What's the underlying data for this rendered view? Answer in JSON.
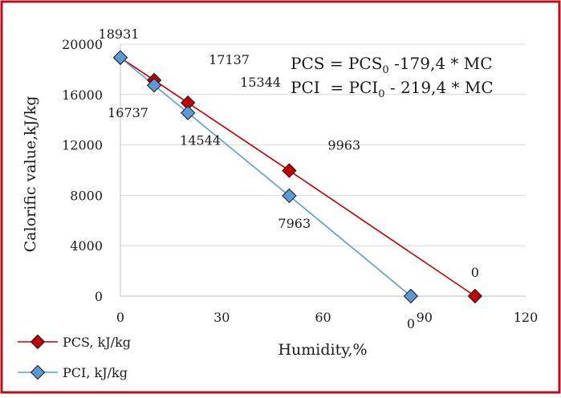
{
  "chart_data": {
    "type": "scatter",
    "xlabel": "Humidity,%",
    "ylabel": "Calorific value,kJ/kg",
    "xlim": [
      0,
      120
    ],
    "ylim": [
      0,
      20000
    ],
    "xticks": [
      "0",
      "30",
      "60",
      "90",
      "120"
    ],
    "yticks": [
      "0",
      "4000",
      "8000",
      "12000",
      "16000",
      "20000"
    ],
    "grid": true,
    "legend": "bottom-left",
    "series": [
      {
        "name": "PCS, kJ/kg",
        "color": "#c00000",
        "marker_color": "#c00000",
        "x": [
          0,
          10,
          20,
          50,
          105
        ],
        "y": [
          18931,
          17137,
          15344,
          9963,
          0
        ],
        "labels": [
          "18931",
          "17137",
          "15344",
          "9963",
          "0"
        ]
      },
      {
        "name": "PCI, kJ/kg",
        "color": "#5b9bd5",
        "marker_color": "#5b9bd5",
        "x": [
          0,
          10,
          20,
          50,
          86
        ],
        "y": [
          18931,
          16737,
          14544,
          7963,
          0
        ],
        "labels": [
          "",
          "16737",
          "14544",
          "7963",
          "0"
        ]
      }
    ],
    "equations": [
      {
        "lhs": "PCS",
        "rhs_base": "PCS",
        "sub": "0",
        "rhs_rest": " -179,4 * MC"
      },
      {
        "lhs": "PCI",
        "rhs_base": "PCI",
        "sub": "0",
        "rhs_rest": " - 219,4 * MC"
      }
    ]
  }
}
